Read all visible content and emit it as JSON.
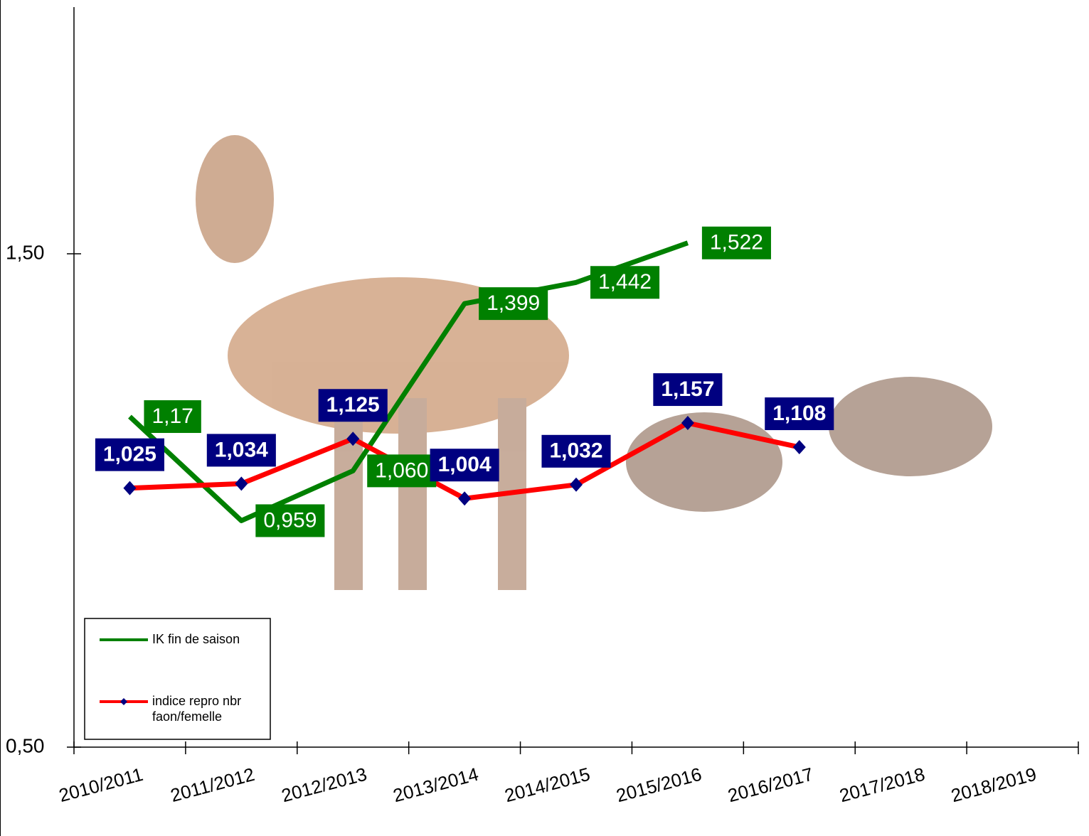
{
  "chart_data": {
    "type": "line",
    "categories": [
      "2010/2011",
      "2011/2012",
      "2012/2013",
      "2013/2014",
      "2014/2015",
      "2015/2016",
      "2016/2017",
      "2017/2018",
      "2018/2019"
    ],
    "series": [
      {
        "name": "IK fin de saison",
        "color": "#008000",
        "label_color": "#008000",
        "values": [
          1.17,
          0.959,
          1.06,
          1.399,
          1.442,
          1.522,
          null,
          null,
          null
        ],
        "value_labels": [
          "1,17",
          "0,959",
          "1,060",
          "1,399",
          "1,442",
          "1,522",
          null,
          null,
          null
        ]
      },
      {
        "name": "indice repro nbr faon/femelle",
        "color": "#ff0000",
        "label_color": "#000080",
        "marker_color": "#000080",
        "values": [
          1.025,
          1.034,
          1.125,
          1.004,
          1.032,
          1.157,
          1.108,
          null,
          null
        ],
        "value_labels": [
          "1,025",
          "1,034",
          "1,125",
          "1,004",
          "1,032",
          "1,157",
          "1,108",
          null,
          null
        ]
      }
    ],
    "ylim": [
      0.5,
      2.0
    ],
    "yticks": [
      {
        "value": 0.5,
        "label": "0,50"
      },
      {
        "value": 1.5,
        "label": "1,50"
      }
    ],
    "legend": "lower left"
  }
}
